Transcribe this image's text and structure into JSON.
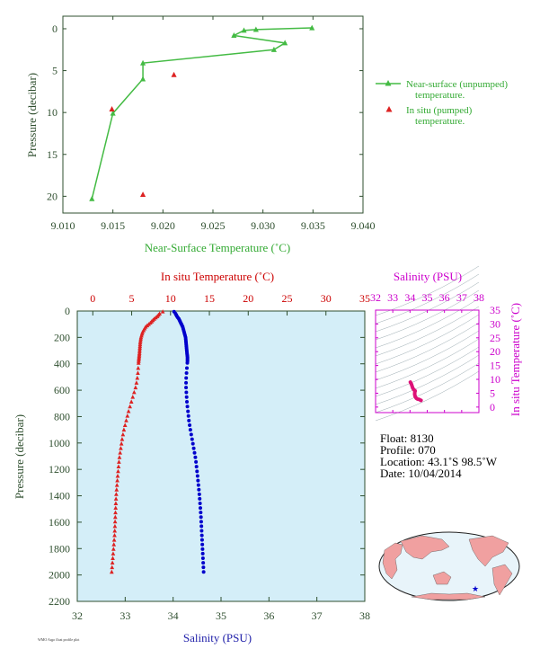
{
  "chart_data": [
    {
      "type": "scatter",
      "xlabel": "Near-Surface Temperature (˚C)",
      "ylabel": "Pressure (decibar)",
      "xlim": [
        9.01,
        9.04
      ],
      "ylim": [
        22,
        -1.5
      ],
      "xticks": [
        "9.010",
        "9.015",
        "9.020",
        "9.025",
        "9.030",
        "9.035",
        "9.040"
      ],
      "yticks": [
        0,
        5,
        10,
        15,
        20
      ],
      "legend_position": "right",
      "series": [
        {
          "name": "Near-surface (unpumped) temperature.",
          "color": "#44bb44",
          "marker": "triangle",
          "line": true,
          "x": [
            9.0349,
            9.0293,
            9.0281,
            9.0271,
            9.0322,
            9.0311,
            9.018,
            9.018,
            9.015,
            9.0129
          ],
          "y": [
            -0.1,
            0.1,
            0.2,
            0.8,
            1.7,
            2.5,
            4.1,
            6.0,
            10.1,
            20.3
          ]
        },
        {
          "name": "In situ (pumped) temperature.",
          "color": "#dd2222",
          "marker": "triangle",
          "line": false,
          "x": [
            9.0211,
            9.0149,
            9.018
          ],
          "y": [
            5.5,
            9.6,
            19.8
          ]
        }
      ]
    },
    {
      "type": "scatter",
      "xlabel": "Salinity (PSU)",
      "x2label": "In situ Temperature (˚C)",
      "ylabel": "Pressure (decibar)",
      "xlim": [
        32,
        38
      ],
      "x2lim": [
        -2,
        35
      ],
      "ylim": [
        2200,
        0
      ],
      "xticks": [
        "32",
        "33",
        "34",
        "35",
        "36",
        "37",
        "38"
      ],
      "x2ticks": [
        "0",
        "5",
        "10",
        "15",
        "20",
        "25",
        "30",
        "35"
      ],
      "yticks": [
        "0",
        "200",
        "400",
        "600",
        "800",
        "1000",
        "1200",
        "1400",
        "1600",
        "1800",
        "2000",
        "2200"
      ],
      "background": "#d4eef8",
      "series": [
        {
          "name": "temperature",
          "axis": "top",
          "color": "#dd2222",
          "marker": "triangle",
          "x": [
            9.0,
            8.6,
            8.3,
            7.9,
            7.4,
            6.8,
            6.4,
            6.2,
            6.1,
            6.05,
            6.0,
            5.95,
            5.9,
            5.85,
            5.8,
            5.7,
            5.5,
            5.2,
            4.9,
            4.6,
            4.3,
            4.0,
            3.8,
            3.6,
            3.4,
            3.2,
            3.0,
            2.9,
            2.8,
            2.6,
            2.4
          ],
          "y": [
            5,
            20,
            40,
            60,
            90,
            120,
            160,
            200,
            240,
            280,
            320,
            350,
            380,
            420,
            470,
            520,
            580,
            640,
            700,
            760,
            830,
            900,
            960,
            1040,
            1120,
            1250,
            1400,
            1550,
            1700,
            1850,
            2000
          ]
        },
        {
          "name": "salinity",
          "axis": "bottom",
          "color": "#0000cc",
          "marker": "circle",
          "x": [
            34.02,
            34.05,
            34.08,
            34.12,
            34.16,
            34.2,
            34.23,
            34.26,
            34.27,
            34.28,
            34.29,
            34.3,
            34.3,
            34.29,
            34.28,
            34.27,
            34.27,
            34.28,
            34.29,
            34.31,
            34.33,
            34.36,
            34.39,
            34.43,
            34.47,
            34.51,
            34.55,
            34.58,
            34.6,
            34.62,
            34.64
          ],
          "y": [
            5,
            20,
            40,
            60,
            90,
            120,
            160,
            200,
            240,
            280,
            320,
            350,
            380,
            420,
            470,
            520,
            580,
            640,
            700,
            760,
            830,
            900,
            960,
            1040,
            1120,
            1250,
            1400,
            1550,
            1700,
            1850,
            2000
          ]
        }
      ]
    },
    {
      "type": "scatter",
      "xlabel": "Salinity (PSU)",
      "ylabel": "In situ Temperature (˚C)",
      "xlim": [
        32,
        38
      ],
      "ylim": [
        -2,
        35
      ],
      "xticks": [
        "32",
        "33",
        "34",
        "35",
        "36",
        "37",
        "38"
      ],
      "yticks": [
        "0",
        "5",
        "10",
        "15",
        "20",
        "25",
        "30",
        "35"
      ],
      "series": [
        {
          "name": "T-S",
          "color": "#dd1177",
          "x": [
            34.02,
            34.08,
            34.16,
            34.23,
            34.27,
            34.29,
            34.3,
            34.28,
            34.27,
            34.3,
            34.36,
            34.43,
            34.51,
            34.58,
            34.64
          ],
          "y": [
            9.0,
            8.3,
            6.8,
            6.2,
            6.05,
            5.9,
            5.8,
            5.5,
            4.6,
            3.8,
            3.2,
            2.9,
            2.8,
            2.6,
            2.4
          ]
        }
      ]
    }
  ],
  "legend": {
    "unpumped_line1": "Near-surface (unpumped)",
    "unpumped_line2": "temperature.",
    "pumped_line1": "In situ (pumped)",
    "pumped_line2": "temperature."
  },
  "info": {
    "float": "Float:  8130",
    "profile": "Profile:  070",
    "location": "Location:  43.1˚S  98.5˚W",
    "date": "Date:  10/04/2014"
  },
  "credit": "WMO Argo float profile plot",
  "map": {
    "land_color": "#f0a0a0",
    "ocean_color": "#e8f4fa",
    "marker_color": "#0000cc",
    "marker_glyph": "★"
  }
}
